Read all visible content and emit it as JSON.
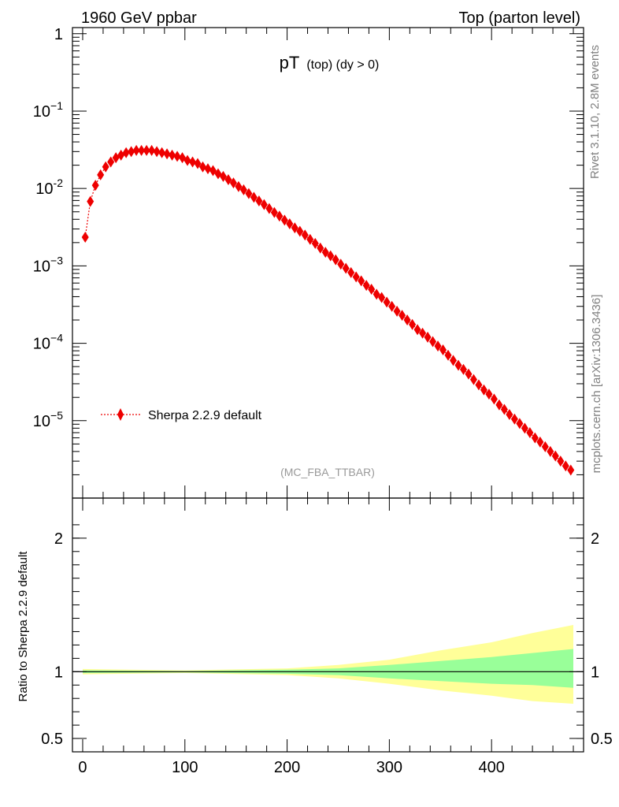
{
  "header": {
    "left": "1960 GeV ppbar",
    "right": "Top (parton level)"
  },
  "plot_title": {
    "main": "pT",
    "sub": "(top) (dy > 0)"
  },
  "side_texts": {
    "rivet": "Rivet 3.1.10,  2.8M events",
    "source": "mcplots.cern.ch [arXiv:1306.3436]"
  },
  "analysis_label": "(MC_FBA_TTBAR)",
  "legend": {
    "entry": "Sherpa 2.2.9 default"
  },
  "colors": {
    "series": "#ee0000",
    "band_inner": "#99ff99",
    "band_outer": "#ffff99"
  },
  "chart_data": [
    {
      "type": "scatter",
      "scale": "log",
      "ylim": [
        1e-06,
        1.2
      ],
      "xlim": [
        -10,
        490
      ],
      "y_ticks": [
        {
          "value": 1,
          "label": "1",
          "sup": ""
        },
        {
          "value": 0.1,
          "label": "10",
          "sup": "−1"
        },
        {
          "value": 0.01,
          "label": "10",
          "sup": "-2"
        },
        {
          "value": 0.001,
          "label": "10",
          "sup": "−3"
        },
        {
          "value": 0.0001,
          "label": "10",
          "sup": "−4"
        },
        {
          "value": 1e-05,
          "label": "10",
          "sup": "−5"
        }
      ],
      "series": [
        {
          "name": "Sherpa 2.2.9 default",
          "x": [
            2.5,
            7.5,
            12.5,
            17.5,
            22.5,
            27.5,
            32.5,
            37.5,
            42.5,
            47.5,
            52.5,
            57.5,
            62.5,
            67.5,
            72.5,
            77.5,
            82.5,
            87.5,
            92.5,
            97.5,
            102.5,
            107.5,
            112.5,
            117.5,
            122.5,
            127.5,
            132.5,
            137.5,
            142.5,
            147.5,
            152.5,
            157.5,
            162.5,
            167.5,
            172.5,
            177.5,
            182.5,
            187.5,
            192.5,
            197.5,
            202.5,
            207.5,
            212.5,
            217.5,
            222.5,
            227.5,
            232.5,
            237.5,
            242.5,
            247.5,
            252.5,
            257.5,
            262.5,
            267.5,
            272.5,
            277.5,
            282.5,
            287.5,
            292.5,
            297.5,
            302.5,
            307.5,
            312.5,
            317.5,
            322.5,
            327.5,
            332.5,
            337.5,
            342.5,
            347.5,
            352.5,
            357.5,
            362.5,
            367.5,
            372.5,
            377.5,
            382.5,
            387.5,
            392.5,
            397.5,
            402.5,
            407.5,
            412.5,
            417.5,
            422.5,
            427.5,
            432.5,
            437.5,
            442.5,
            447.5,
            452.5,
            457.5,
            462.5,
            467.5,
            472.5,
            477.5
          ],
          "y": [
            0.00235,
            0.0068,
            0.011,
            0.015,
            0.019,
            0.022,
            0.025,
            0.027,
            0.029,
            0.03,
            0.031,
            0.031,
            0.031,
            0.031,
            0.03,
            0.029,
            0.028,
            0.027,
            0.026,
            0.025,
            0.023,
            0.022,
            0.021,
            0.019,
            0.018,
            0.017,
            0.0155,
            0.0143,
            0.013,
            0.0118,
            0.0106,
            0.0096,
            0.0086,
            0.0077,
            0.0069,
            0.0062,
            0.0055,
            0.0049,
            0.0044,
            0.0039,
            0.0035,
            0.0031,
            0.0028,
            0.0025,
            0.0022,
            0.00195,
            0.0017,
            0.0015,
            0.00135,
            0.0012,
            0.00105,
            0.00093,
            0.00082,
            0.00072,
            0.00064,
            0.00056,
            0.0005,
            0.00043,
            0.00039,
            0.00034,
            0.0003,
            0.00026,
            0.00023,
            0.0002,
            0.000175,
            0.00015,
            0.000135,
            0.00012,
            0.000105,
            9.2e-05,
            8.2e-05,
            7e-05,
            6e-05,
            5.2e-05,
            4.6e-05,
            4e-05,
            3.4e-05,
            2.9e-05,
            2.5e-05,
            2.2e-05,
            1.9e-05,
            1.6e-05,
            1.4e-05,
            1.2e-05,
            1.05e-05,
            9.2e-06,
            8e-06,
            7e-06,
            6e-06,
            5.3e-06,
            4.6e-06,
            4e-06,
            3.5e-06,
            3e-06,
            2.6e-06,
            2.3e-06
          ]
        }
      ]
    },
    {
      "type": "area",
      "ylabel": "Ratio to Sherpa 2.2.9 default",
      "ylim": [
        0.4,
        2.3
      ],
      "xlim": [
        -10,
        490
      ],
      "x_ticks": [
        0,
        100,
        200,
        300,
        400
      ],
      "y_ticks": [
        {
          "value": 2,
          "label": "2"
        },
        {
          "value": 1,
          "label": "1"
        },
        {
          "value": 0.5,
          "label": "0.5"
        }
      ],
      "reference_line": 1,
      "series": [
        {
          "name": "Sherpa 2.2.9 default",
          "x": [
            0,
            100,
            200,
            250,
            300,
            350,
            400,
            440,
            480
          ],
          "inner_lo": [
            0.99,
            0.995,
            0.985,
            0.975,
            0.95,
            0.93,
            0.91,
            0.9,
            0.88
          ],
          "inner_hi": [
            1.01,
            1.005,
            1.015,
            1.025,
            1.05,
            1.08,
            1.11,
            1.14,
            1.17
          ],
          "outer_lo": [
            0.98,
            0.99,
            0.975,
            0.95,
            0.91,
            0.86,
            0.82,
            0.78,
            0.76
          ],
          "outer_hi": [
            1.02,
            1.01,
            1.025,
            1.05,
            1.09,
            1.16,
            1.22,
            1.29,
            1.35
          ]
        }
      ]
    }
  ]
}
